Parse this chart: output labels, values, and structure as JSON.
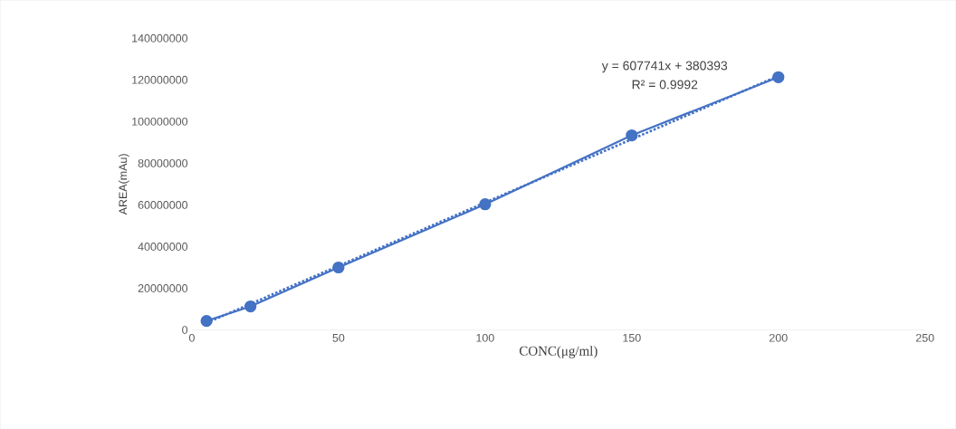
{
  "chart_data": {
    "type": "line",
    "xlabel": "CONC(μg/ml)",
    "ylabel": "AREA(mAu)",
    "xlim": [
      0,
      250
    ],
    "xticks": [
      0,
      50,
      100,
      150,
      200,
      250
    ],
    "ylim": [
      0,
      140000000
    ],
    "yticks": [
      0,
      20000000,
      40000000,
      60000000,
      80000000,
      100000000,
      120000000,
      140000000
    ],
    "grid": false,
    "x": [
      5,
      20,
      50,
      100,
      150,
      200
    ],
    "series": [
      {
        "color": "#4472c4",
        "marker": "circle",
        "line_style": "solid",
        "values": [
          4300000,
          11300000,
          30000000,
          60300000,
          93400000,
          121300000
        ]
      },
      {
        "type": "line",
        "color": "#4472c4",
        "marker": "none",
        "line_style": "dotted",
        "x": [
          5,
          200
        ],
        "values": [
          3400000,
          121900000
        ]
      }
    ],
    "annotations": [
      "y = 607741x + 380393",
      "R² = 0.9992"
    ]
  }
}
